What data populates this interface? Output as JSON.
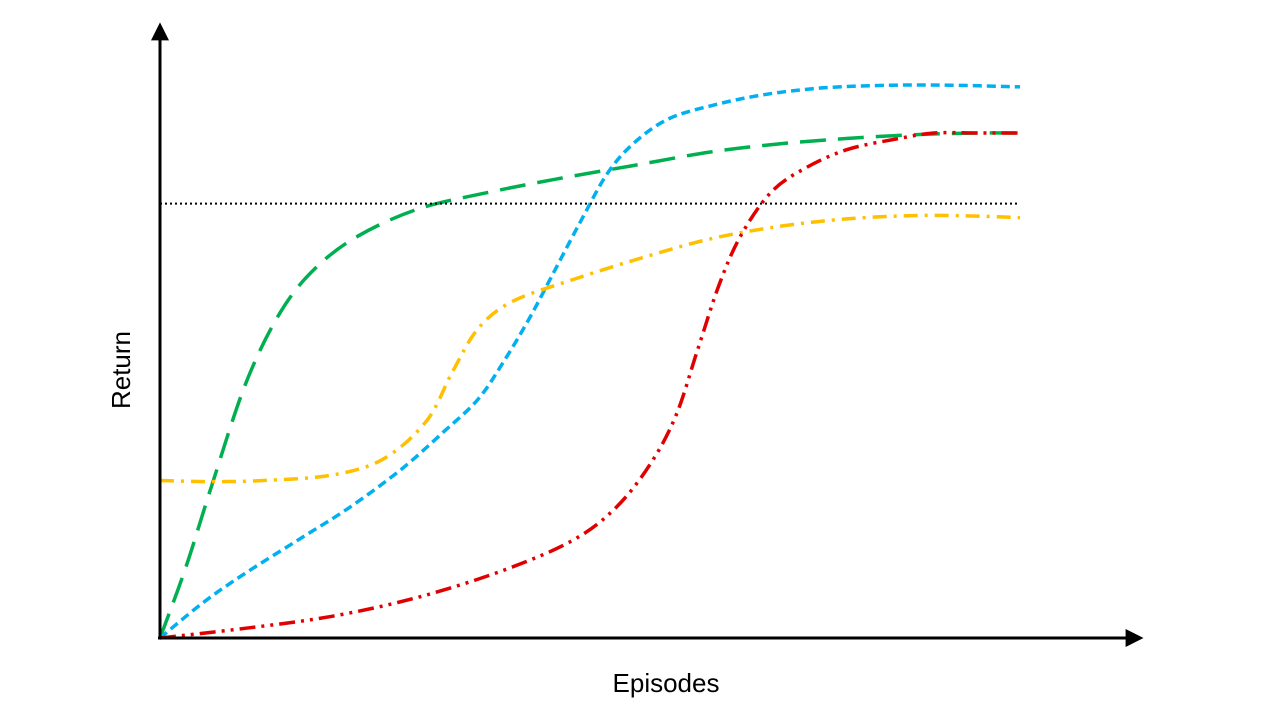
{
  "chart_data": {
    "type": "line",
    "title": "",
    "xlabel": "Episodes",
    "ylabel": "Return",
    "xlim": [
      0,
      100
    ],
    "ylim": [
      0,
      100
    ],
    "grid": false,
    "legend": "none",
    "reference_line": {
      "y": 80,
      "color": "#000000",
      "style": "dotted"
    },
    "series": [
      {
        "color": "#00B050",
        "style": "long-dash",
        "points": [
          [
            0,
            0
          ],
          [
            3,
            13
          ],
          [
            6,
            28
          ],
          [
            10,
            47
          ],
          [
            14,
            60
          ],
          [
            18,
            68
          ],
          [
            23,
            74
          ],
          [
            30,
            79
          ],
          [
            38,
            82
          ],
          [
            46,
            84.5
          ],
          [
            55,
            87
          ],
          [
            64,
            89.5
          ],
          [
            72,
            91
          ],
          [
            80,
            92
          ],
          [
            88,
            92.7
          ],
          [
            95,
            93
          ],
          [
            100,
            93
          ]
        ]
      },
      {
        "color": "#00B0F0",
        "style": "short-dash",
        "points": [
          [
            0,
            0
          ],
          [
            5,
            6.5
          ],
          [
            10,
            12
          ],
          [
            16,
            18
          ],
          [
            22,
            24
          ],
          [
            28,
            31
          ],
          [
            33,
            38
          ],
          [
            37,
            44
          ],
          [
            40,
            51
          ],
          [
            43,
            59
          ],
          [
            46,
            68
          ],
          [
            49,
            77
          ],
          [
            52,
            85.5
          ],
          [
            55,
            91
          ],
          [
            59,
            95.5
          ],
          [
            64,
            98
          ],
          [
            70,
            100
          ],
          [
            77,
            101.3
          ],
          [
            85,
            101.8
          ],
          [
            92,
            101.8
          ],
          [
            100,
            101.5
          ]
        ]
      },
      {
        "color": "#FFC000",
        "style": "dash-dot",
        "points": [
          [
            0,
            29
          ],
          [
            6,
            28.8
          ],
          [
            12,
            29
          ],
          [
            20,
            30
          ],
          [
            26,
            33
          ],
          [
            31,
            40
          ],
          [
            34,
            49
          ],
          [
            37,
            57
          ],
          [
            41,
            62
          ],
          [
            48,
            66
          ],
          [
            56,
            70
          ],
          [
            64,
            73.5
          ],
          [
            72,
            75.8
          ],
          [
            80,
            77.2
          ],
          [
            88,
            77.8
          ],
          [
            95,
            77.7
          ],
          [
            100,
            77.4
          ]
        ]
      },
      {
        "color": "#E00000",
        "style": "dash-dot-dot",
        "points": [
          [
            0,
            0
          ],
          [
            10,
            1.8
          ],
          [
            20,
            4
          ],
          [
            30,
            7.5
          ],
          [
            40,
            12.5
          ],
          [
            48,
            18
          ],
          [
            53,
            24
          ],
          [
            57,
            32
          ],
          [
            60,
            41
          ],
          [
            62.5,
            53
          ],
          [
            65,
            65
          ],
          [
            67.5,
            74
          ],
          [
            71,
            82
          ],
          [
            75,
            86.5
          ],
          [
            80,
            90
          ],
          [
            86,
            92
          ],
          [
            90,
            93
          ],
          [
            95,
            93
          ],
          [
            100,
            93
          ]
        ]
      }
    ]
  }
}
